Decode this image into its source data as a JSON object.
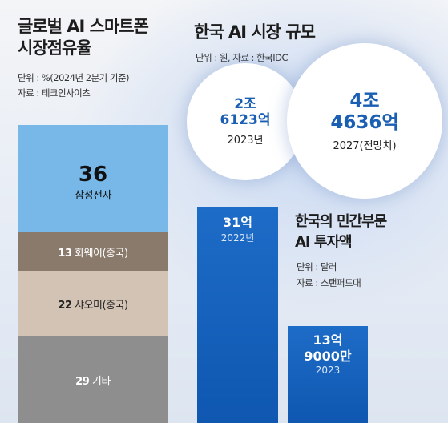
{
  "left": {
    "title_line1": "글로벌 AI 스마트폰",
    "title_line2": "시장점유율",
    "unit": "단위 : %(2024년 2분기 기준)",
    "source": "자료 : 테크인사이츠"
  },
  "right_top": {
    "title": "한국 AI 시장 규모",
    "unit_source": "단위 : 원, 자료 : 한국IDC"
  },
  "right_bottom": {
    "title_line1": "한국의 민간부문",
    "title_line2": "AI 투자액",
    "unit": "단위 : 달러",
    "source": "자료 : 스탠퍼드대"
  },
  "chart_data": [
    {
      "type": "bar",
      "title": "글로벌 AI 스마트폰 시장점유율",
      "unit": "%",
      "categories": [
        "삼성전자",
        "화웨이(중국)",
        "샤오미(중국)",
        "기타"
      ],
      "values": [
        36,
        13,
        22,
        29
      ],
      "value_labels": [
        "36",
        "13",
        "22",
        "29"
      ],
      "colors": [
        "#77b8e8",
        "#8a7a6b",
        "#d3c3b4",
        "#8e8e8e"
      ]
    },
    {
      "type": "bar",
      "title": "한국 AI 시장 규모",
      "unit": "원",
      "categories": [
        "2023년",
        "2027(전망치)"
      ],
      "values": [
        26123,
        46636
      ],
      "value_labels": [
        [
          "2조",
          "6123억"
        ],
        [
          "4조",
          "4636억"
        ]
      ]
    },
    {
      "type": "bar",
      "title": "한국의 민간부문 AI 투자액",
      "unit": "달러",
      "categories": [
        "2022년",
        "2023"
      ],
      "values": [
        31,
        13.9
      ],
      "value_labels": [
        [
          "31억"
        ],
        [
          "13억",
          "9000만"
        ]
      ]
    }
  ]
}
